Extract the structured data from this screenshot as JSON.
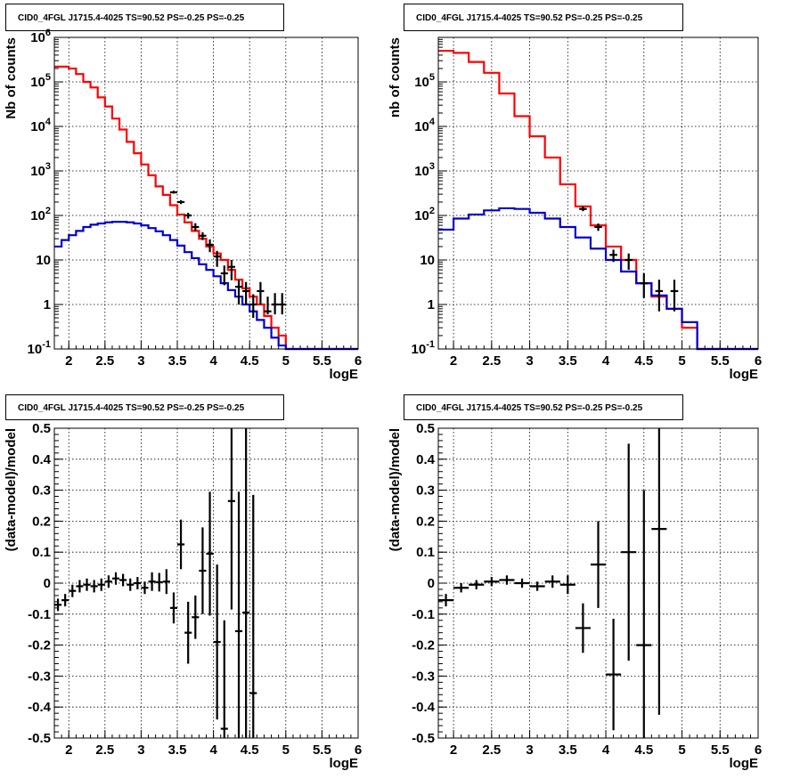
{
  "colors": {
    "model": "#ff0000",
    "background": "#0000cc",
    "data": "#000000",
    "grid": "#000000"
  },
  "chart_data": [
    {
      "type": "line",
      "title": "CID0_4FGL J1715.4-4025 TS=90.52 PS=-0.25 PS=-0.25",
      "xlabel": "logE",
      "ylabel": "Nb of counts",
      "log_y": true,
      "grid": true,
      "xlim": [
        1.8,
        6.0
      ],
      "ylim": [
        0.1,
        1000000
      ],
      "x_ticks": [
        "2",
        "2.5",
        "3",
        "3.5",
        "4",
        "4.5",
        "5",
        "5.5",
        "6"
      ],
      "y_ticks": [
        "10^-1",
        "1",
        "10",
        "10^2",
        "10^3",
        "10^4",
        "10^5",
        "10^6"
      ],
      "series": [
        {
          "style": "step",
          "color": "#ff0000",
          "bin_width": 0.1,
          "x": [
            1.8,
            1.9,
            2.0,
            2.1,
            2.2,
            2.3,
            2.4,
            2.5,
            2.6,
            2.7,
            2.8,
            2.9,
            3.0,
            3.1,
            3.2,
            3.3,
            3.4,
            3.5,
            3.6,
            3.7,
            3.8,
            3.9,
            4.0,
            4.1,
            4.2,
            4.3,
            4.4,
            4.5,
            4.6,
            4.7,
            4.8,
            4.9,
            5.0,
            5.1,
            5.2,
            5.3,
            5.4,
            5.5,
            5.6,
            5.7,
            5.8,
            5.9
          ],
          "values": [
            220000,
            220000,
            200000,
            150000,
            100000,
            75000,
            45000,
            28000,
            15000,
            8500,
            4500,
            2500,
            1400,
            800,
            450,
            290,
            170,
            105,
            70,
            45,
            30,
            20,
            14,
            10,
            6,
            3.6,
            2.3,
            1.5,
            1.0,
            0.55,
            0.3,
            0.2,
            0.1,
            0.1,
            0.1,
            0.1,
            0.1,
            0.1,
            0.1,
            0.1,
            0.1,
            0.1
          ]
        },
        {
          "style": "step",
          "color": "#0000cc",
          "bin_width": 0.1,
          "x": [
            1.8,
            1.9,
            2.0,
            2.1,
            2.2,
            2.3,
            2.4,
            2.5,
            2.6,
            2.7,
            2.8,
            2.9,
            3.0,
            3.1,
            3.2,
            3.3,
            3.4,
            3.5,
            3.6,
            3.7,
            3.8,
            3.9,
            4.0,
            4.1,
            4.2,
            4.3,
            4.4,
            4.5,
            4.6,
            4.7,
            4.8,
            4.9,
            5.0,
            5.1,
            5.2,
            5.3,
            5.4,
            5.5,
            5.6,
            5.7,
            5.8,
            5.9
          ],
          "values": [
            20,
            28,
            36,
            45,
            55,
            62,
            66,
            70,
            72,
            72,
            70,
            66,
            60,
            52,
            44,
            36,
            28,
            21,
            15,
            11,
            8,
            6,
            4.3,
            3.0,
            2.1,
            1.5,
            1.0,
            0.7,
            0.45,
            0.3,
            0.18,
            0.12,
            0.1,
            0.1,
            0.1,
            0.1,
            0.1,
            0.1,
            0.1,
            0.1,
            0.1,
            0.1
          ]
        }
      ],
      "points": {
        "x": [
          3.45,
          3.55,
          3.65,
          3.75,
          3.85,
          3.95,
          4.05,
          4.15,
          4.25,
          4.35,
          4.45,
          4.55,
          4.65,
          4.75,
          4.85,
          4.95
        ],
        "y": [
          330,
          200,
          100,
          55,
          35,
          22,
          12,
          5,
          7,
          2.5,
          2,
          1.0,
          2,
          0.7,
          1,
          1
        ],
        "err_low": [
          310,
          180,
          85,
          45,
          28,
          15,
          7,
          2.7,
          3.5,
          1.0,
          1.0,
          0.5,
          1.0,
          0.6,
          0.6,
          0.6
        ],
        "err_high": [
          360,
          220,
          115,
          67,
          42,
          29,
          16,
          7.5,
          10,
          3.5,
          3.2,
          1.7,
          3.2,
          1.5,
          1.8,
          1.8
        ]
      }
    },
    {
      "type": "line",
      "title": "CID0_4FGL J1715.4-4025 TS=90.52 PS=-0.25 PS=-0.25",
      "xlabel": "logE",
      "ylabel": "nb of counts",
      "log_y": true,
      "grid": true,
      "xlim": [
        1.8,
        6.0
      ],
      "ylim": [
        0.1,
        1000000
      ],
      "x_ticks": [
        "2",
        "2.5",
        "3",
        "3.5",
        "4",
        "4.5",
        "5",
        "5.5",
        "6"
      ],
      "y_ticks": [
        "10^-1",
        "1",
        "10",
        "10^2",
        "10^3",
        "10^4",
        "10^5"
      ],
      "series": [
        {
          "style": "step",
          "color": "#ff0000",
          "bin_width": 0.2,
          "x": [
            1.8,
            2.0,
            2.2,
            2.4,
            2.6,
            2.8,
            3.0,
            3.2,
            3.4,
            3.6,
            3.8,
            4.0,
            4.2,
            4.4,
            4.6,
            4.8,
            5.0,
            5.2,
            5.4,
            5.6,
            5.8
          ],
          "values": [
            500000,
            450000,
            280000,
            160000,
            55000,
            17000,
            6000,
            2000,
            500,
            160,
            60,
            20,
            10,
            3,
            1.5,
            0.8,
            0.3,
            0.1,
            0.1,
            0.1,
            0.1
          ]
        },
        {
          "style": "step",
          "color": "#0000cc",
          "bin_width": 0.2,
          "x": [
            1.8,
            2.0,
            2.2,
            2.4,
            2.6,
            2.8,
            3.0,
            3.2,
            3.4,
            3.6,
            3.8,
            4.0,
            4.2,
            4.4,
            4.6,
            4.8,
            5.0,
            5.2,
            5.4,
            5.6,
            5.8
          ],
          "values": [
            48,
            85,
            105,
            130,
            145,
            140,
            115,
            85,
            55,
            32,
            18,
            10,
            5.5,
            3.0,
            1.6,
            0.8,
            0.4,
            0.1,
            0.1,
            0.1,
            0.1
          ]
        }
      ],
      "points": {
        "x": [
          3.7,
          3.9,
          4.1,
          4.3,
          4.5,
          4.7,
          4.9
        ],
        "y": [
          140,
          55,
          13,
          10,
          3,
          2,
          2
        ],
        "err_low": [
          125,
          45,
          9,
          6,
          1.4,
          0.7,
          0.7
        ],
        "err_high": [
          160,
          66,
          17,
          14,
          5,
          3.6,
          3.6
        ]
      }
    },
    {
      "type": "scatter",
      "title": "CID0_4FGL J1715.4-4025 TS=90.52 PS=-0.25 PS=-0.25",
      "xlabel": "logE",
      "ylabel": "(data-model)/model",
      "log_y": false,
      "grid": true,
      "xlim": [
        1.8,
        6.0
      ],
      "ylim": [
        -0.5,
        0.5
      ],
      "x_ticks": [
        "2",
        "2.5",
        "3",
        "3.5",
        "4",
        "4.5",
        "5",
        "5.5",
        "6"
      ],
      "y_ticks": [
        "-0.5",
        "-0.4",
        "-0.3",
        "-0.2",
        "-0.1",
        "0",
        "0.1",
        "0.2",
        "0.3",
        "0.4",
        "0.5"
      ],
      "x_error": 0.05,
      "points": {
        "x": [
          1.85,
          1.95,
          2.05,
          2.15,
          2.25,
          2.35,
          2.45,
          2.55,
          2.65,
          2.75,
          2.85,
          2.95,
          3.05,
          3.15,
          3.25,
          3.35,
          3.45,
          3.55,
          3.65,
          3.75,
          3.85,
          3.95,
          4.05,
          4.15,
          4.25,
          4.35,
          4.45,
          4.55
        ],
        "y": [
          -0.07,
          -0.055,
          -0.025,
          -0.01,
          -0.005,
          -0.01,
          -0.005,
          0.005,
          0.015,
          0.01,
          -0.005,
          0.0,
          -0.015,
          0.005,
          0.003,
          0.005,
          -0.08,
          0.125,
          -0.16,
          -0.11,
          0.04,
          0.095,
          -0.19,
          -0.47,
          0.265,
          -0.155,
          -0.095,
          -0.355
        ],
        "err": [
          0.02,
          0.02,
          0.02,
          0.02,
          0.02,
          0.02,
          0.02,
          0.02,
          0.02,
          0.02,
          0.02,
          0.02,
          0.02,
          0.03,
          0.03,
          0.04,
          0.05,
          0.08,
          0.1,
          0.07,
          0.14,
          0.2,
          0.25,
          0.35,
          0.35,
          0.45,
          0.6,
          0.64
        ]
      }
    },
    {
      "type": "scatter",
      "title": "CID0_4FGL J1715.4-4025 TS=90.52 PS=-0.25 PS=-0.25",
      "xlabel": "logE",
      "ylabel": "(data-model)/model",
      "log_y": false,
      "grid": true,
      "xlim": [
        1.8,
        6.0
      ],
      "ylim": [
        -0.5,
        0.5
      ],
      "x_ticks": [
        "2",
        "2.5",
        "3",
        "3.5",
        "4",
        "4.5",
        "5",
        "5.5",
        "6"
      ],
      "y_ticks": [
        "-0.5",
        "-0.4",
        "-0.3",
        "-0.2",
        "-0.1",
        "0",
        "0.1",
        "0.2",
        "0.3",
        "0.4",
        "0.5"
      ],
      "x_error": 0.1,
      "points": {
        "x": [
          1.9,
          2.1,
          2.3,
          2.5,
          2.7,
          2.9,
          3.1,
          3.3,
          3.5,
          3.7,
          3.9,
          4.1,
          4.3,
          4.5,
          4.7
        ],
        "y": [
          -0.055,
          -0.015,
          -0.005,
          0.005,
          0.01,
          0.0,
          -0.01,
          0.005,
          -0.005,
          -0.145,
          0.06,
          -0.295,
          0.1,
          -0.2,
          0.175
        ],
        "err": [
          0.02,
          0.015,
          0.015,
          0.015,
          0.015,
          0.015,
          0.015,
          0.02,
          0.03,
          0.08,
          0.14,
          0.18,
          0.35,
          0.5,
          0.6
        ]
      }
    }
  ]
}
